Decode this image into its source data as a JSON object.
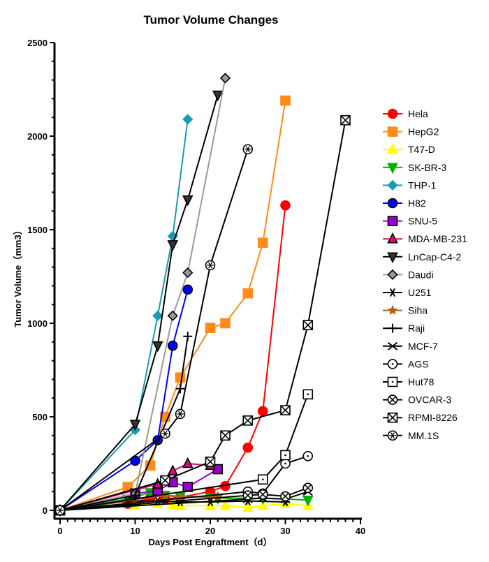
{
  "chart_data": {
    "type": "line",
    "title": "Tumor Volume Changes",
    "xlabel": "Days Post Engraftment（d）",
    "ylabel": "Tumor Volume（mm3）",
    "xlim": [
      0,
      40
    ],
    "ylim": [
      0,
      2500
    ],
    "xticks": [
      0,
      10,
      20,
      30,
      40
    ],
    "yticks": [
      0,
      500,
      1000,
      1500,
      2000,
      2500
    ],
    "grid": false,
    "legend": "right",
    "series": [
      {
        "name": "Hela",
        "color": "#ff0000",
        "marker": "circle",
        "x": [
          0,
          9,
          12,
          14,
          16,
          20,
          22,
          25,
          27,
          30
        ],
        "y": [
          0,
          35,
          65,
          60,
          70,
          100,
          130,
          335,
          530,
          1630
        ]
      },
      {
        "name": "HepG2",
        "color": "#ff8c1a",
        "marker": "square",
        "x": [
          0,
          9,
          12,
          14,
          16,
          20,
          22,
          25,
          27,
          30
        ],
        "y": [
          0,
          125,
          240,
          500,
          710,
          975,
          1000,
          1160,
          1430,
          2190
        ]
      },
      {
        "name": "T47-D",
        "color": "#ffff00",
        "marker": "triangle-up",
        "x": [
          0,
          10,
          13,
          15,
          16,
          20,
          22,
          25,
          27,
          30,
          33
        ],
        "y": [
          0,
          30,
          35,
          30,
          25,
          25,
          25,
          15,
          25,
          35,
          25
        ]
      },
      {
        "name": "SK-BR-3",
        "color": "#00b000",
        "marker": "triangle-down",
        "x": [
          0,
          9,
          12,
          14,
          16,
          20,
          21,
          25,
          27,
          30,
          33
        ],
        "y": [
          0,
          60,
          95,
          80,
          75,
          70,
          65,
          65,
          65,
          60,
          55
        ]
      },
      {
        "name": "THP-1",
        "color": "#1a9bb0",
        "marker": "diamond",
        "x": [
          0,
          10,
          13,
          15,
          17
        ],
        "y": [
          0,
          430,
          1040,
          1465,
          2090
        ]
      },
      {
        "name": "H82",
        "color": "#0000ff",
        "marker": "circle-blackedge",
        "x": [
          0,
          10,
          13,
          15,
          17
        ],
        "y": [
          0,
          265,
          375,
          880,
          1180
        ]
      },
      {
        "name": "SNU-5",
        "color": "#9900cc",
        "marker": "square-blackedge",
        "x": [
          0,
          10,
          13,
          15,
          17,
          21
        ],
        "y": [
          0,
          90,
          105,
          150,
          125,
          220
        ]
      },
      {
        "name": "MDA-MB-231",
        "color": "#cc1177",
        "marker": "triangle-up-blackedge",
        "x": [
          0,
          13,
          15,
          17,
          20
        ],
        "y": [
          0,
          140,
          210,
          250,
          240
        ]
      },
      {
        "name": "LnCap-C4-2",
        "color": "#000000",
        "marker": "triangle-down-dark",
        "x": [
          0,
          10,
          13,
          15,
          17,
          21
        ],
        "y": [
          0,
          460,
          880,
          1420,
          1660,
          2220
        ]
      },
      {
        "name": "Daudi",
        "color": "#999999",
        "marker": "diamond-blackedge",
        "x": [
          0,
          10,
          15,
          17,
          22
        ],
        "y": [
          0,
          90,
          1040,
          1270,
          2310
        ]
      },
      {
        "name": "U251",
        "color": "#000000",
        "marker": "asterisk",
        "x": [
          0,
          9,
          13,
          16,
          20,
          25,
          30
        ],
        "y": [
          0,
          50,
          50,
          45,
          45,
          50,
          45
        ]
      },
      {
        "name": "Siha",
        "color": "#b06010",
        "marker": "star",
        "x": [
          0,
          14,
          16,
          21
        ],
        "y": [
          0,
          80,
          70,
          75
        ]
      },
      {
        "name": "Raji",
        "color": "#000000",
        "marker": "plus",
        "x": [
          0,
          10,
          16,
          17
        ],
        "y": [
          0,
          80,
          650,
          930
        ]
      },
      {
        "name": "MCF-7",
        "color": "#000000",
        "marker": "x",
        "x": [
          0,
          25,
          27,
          30,
          33
        ],
        "y": [
          0,
          60,
          65,
          60,
          100
        ]
      },
      {
        "name": "AGS",
        "color": "#000000",
        "marker": "open-circle",
        "x": [
          0,
          25,
          27,
          30,
          33
        ],
        "y": [
          0,
          100,
          90,
          250,
          290
        ]
      },
      {
        "name": "Hut78",
        "color": "#000000",
        "marker": "open-square",
        "x": [
          0,
          27,
          30,
          33
        ],
        "y": [
          0,
          165,
          295,
          620
        ]
      },
      {
        "name": "OVCAR-3",
        "color": "#000000",
        "marker": "circle-x",
        "x": [
          0,
          25,
          27,
          30,
          33
        ],
        "y": [
          0,
          80,
          85,
          75,
          120
        ]
      },
      {
        "name": "RPMI-8226",
        "color": "#000000",
        "marker": "square-x",
        "x": [
          0,
          14,
          20,
          22,
          25,
          30,
          33,
          38
        ],
        "y": [
          0,
          160,
          260,
          400,
          480,
          535,
          990,
          2085
        ]
      },
      {
        "name": "MM.1S",
        "color": "#000000",
        "marker": "circle-asterisk",
        "x": [
          0,
          14,
          16,
          20,
          25
        ],
        "y": [
          0,
          410,
          515,
          1310,
          1930
        ]
      }
    ]
  }
}
